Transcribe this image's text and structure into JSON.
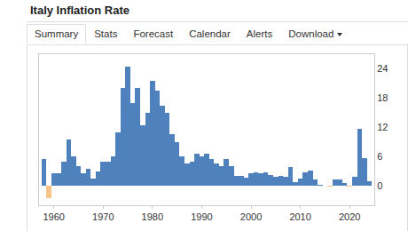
{
  "tabs": [
    "Summary",
    "Stats",
    "Forecast",
    "Calendar",
    "Alerts",
    "Download"
  ],
  "chart_data": {
    "type": "bar",
    "title": "Italy Inflation Rate",
    "x": [
      1958,
      1959,
      1960,
      1961,
      1962,
      1963,
      1964,
      1965,
      1966,
      1967,
      1968,
      1969,
      1970,
      1971,
      1972,
      1973,
      1974,
      1975,
      1976,
      1977,
      1978,
      1979,
      1980,
      1981,
      1982,
      1983,
      1984,
      1985,
      1986,
      1987,
      1988,
      1989,
      1990,
      1991,
      1992,
      1993,
      1994,
      1995,
      1996,
      1997,
      1998,
      1999,
      2000,
      2001,
      2002,
      2003,
      2004,
      2005,
      2006,
      2007,
      2008,
      2009,
      2010,
      2011,
      2012,
      2013,
      2014,
      2015,
      2016,
      2017,
      2018,
      2019,
      2020,
      2021,
      2022,
      2023,
      2024
    ],
    "values": [
      5.5,
      -2.5,
      2.5,
      2.5,
      5,
      9.5,
      6,
      4,
      2.5,
      3.5,
      1.5,
      3,
      5,
      5,
      6,
      11,
      20,
      24.5,
      17,
      20,
      12.5,
      15,
      21.5,
      19.5,
      16.5,
      15,
      10.5,
      9,
      6,
      4.5,
      5,
      6.5,
      6,
      6.5,
      5.5,
      4.5,
      4,
      5.5,
      4,
      2,
      2,
      1.7,
      2.6,
      2.8,
      2.5,
      2.7,
      2.2,
      1.9,
      2.1,
      1.8,
      3.8,
      0.8,
      1.5,
      2.8,
      3.2,
      1.2,
      0.2,
      0.1,
      -0.1,
      1.2,
      1.2,
      0.6,
      -0.2,
      1.9,
      11.6,
      5.7,
      1.0
    ],
    "colors": [
      "#4f81bd",
      "#f8c48c",
      "#4f81bd",
      "#4f81bd",
      "#4f81bd",
      "#4f81bd",
      "#4f81bd",
      "#4f81bd",
      "#4f81bd",
      "#4f81bd",
      "#4f81bd",
      "#4f81bd",
      "#4f81bd",
      "#4f81bd",
      "#4f81bd",
      "#4f81bd",
      "#4f81bd",
      "#4f81bd",
      "#4f81bd",
      "#4f81bd",
      "#4f81bd",
      "#4f81bd",
      "#4f81bd",
      "#4f81bd",
      "#4f81bd",
      "#4f81bd",
      "#4f81bd",
      "#4f81bd",
      "#4f81bd",
      "#4f81bd",
      "#4f81bd",
      "#4f81bd",
      "#4f81bd",
      "#4f81bd",
      "#4f81bd",
      "#4f81bd",
      "#4f81bd",
      "#4f81bd",
      "#4f81bd",
      "#4f81bd",
      "#4f81bd",
      "#4f81bd",
      "#4f81bd",
      "#4f81bd",
      "#4f81bd",
      "#4f81bd",
      "#4f81bd",
      "#4f81bd",
      "#4f81bd",
      "#4f81bd",
      "#4f81bd",
      "#4f81bd",
      "#4f81bd",
      "#4f81bd",
      "#4f81bd",
      "#4f81bd",
      "#4f81bd",
      "#4f81bd",
      "#f8c48c",
      "#4f81bd",
      "#4f81bd",
      "#4f81bd",
      "#f8c48c",
      "#4f81bd",
      "#4f81bd",
      "#4f81bd",
      "#4f81bd"
    ],
    "xlim": [
      1957,
      2025
    ],
    "xticks": [
      1960,
      1970,
      1980,
      1990,
      2000,
      2010,
      2020
    ],
    "ylim": [
      -4,
      27
    ],
    "yticks": [
      0,
      6,
      12,
      18,
      24
    ],
    "grid": false
  }
}
